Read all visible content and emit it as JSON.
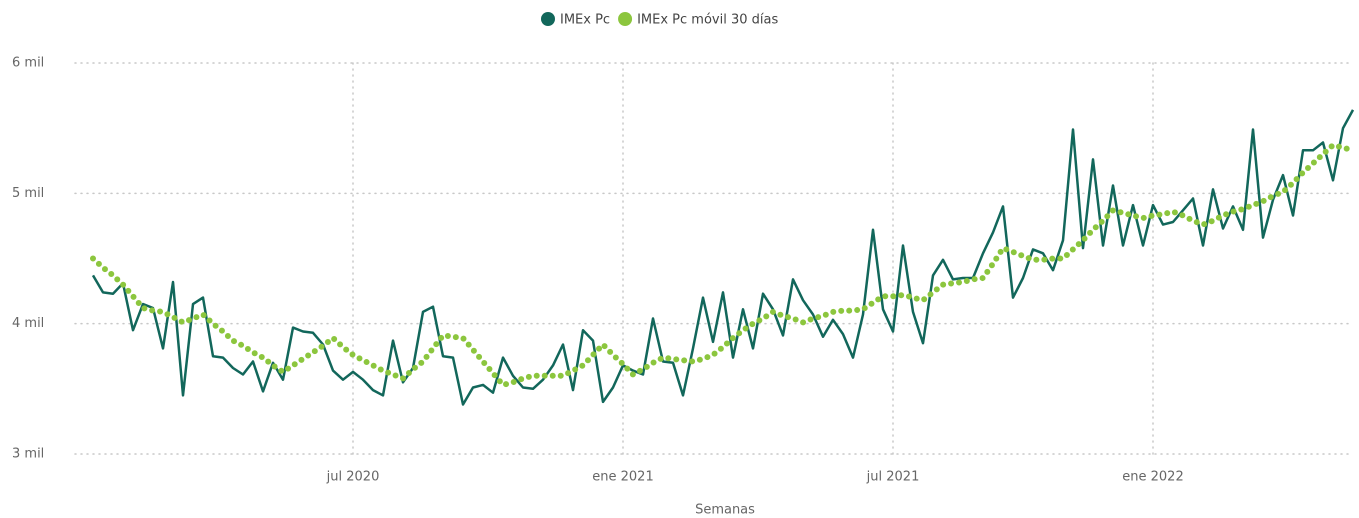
{
  "chart_data": {
    "type": "line",
    "x_label": "Semanas",
    "categories": [
      null,
      null,
      null,
      null,
      null,
      null,
      null,
      null,
      null,
      null,
      null,
      null,
      null,
      null,
      null,
      null,
      null,
      null,
      null,
      null,
      null,
      null,
      null,
      null,
      null,
      null,
      "jul 2020",
      null,
      null,
      null,
      null,
      null,
      null,
      null,
      null,
      null,
      null,
      null,
      null,
      null,
      null,
      null,
      null,
      null,
      null,
      null,
      null,
      null,
      null,
      null,
      null,
      null,
      null,
      "ene 2021",
      null,
      null,
      null,
      null,
      null,
      null,
      null,
      null,
      null,
      null,
      null,
      null,
      null,
      null,
      null,
      null,
      null,
      null,
      null,
      null,
      null,
      null,
      null,
      null,
      null,
      null,
      "jul 2021",
      null,
      null,
      null,
      null,
      null,
      null,
      null,
      null,
      null,
      null,
      null,
      null,
      null,
      null,
      null,
      null,
      null,
      null,
      null,
      null,
      null,
      null,
      null,
      null,
      null,
      "ene 2022",
      null,
      null,
      null,
      null,
      null,
      null,
      null,
      null,
      null,
      null,
      null,
      null,
      null,
      null,
      null,
      null,
      null,
      null,
      null,
      null
    ],
    "series": [
      {
        "name": "IMEx Pc",
        "color": "#12675b",
        "style": "solid",
        "values": [
          4370,
          4240,
          4230,
          4310,
          3950,
          4150,
          4120,
          3810,
          4320,
          3450,
          4150,
          4200,
          3750,
          3740,
          3660,
          3610,
          3710,
          3480,
          3700,
          3570,
          3970,
          3940,
          3930,
          3840,
          3640,
          3570,
          3630,
          3570,
          3490,
          3450,
          3870,
          3550,
          3660,
          4090,
          4130,
          3750,
          3740,
          3380,
          3510,
          3530,
          3470,
          3740,
          3600,
          3510,
          3500,
          3570,
          3680,
          3840,
          3490,
          3950,
          3870,
          3400,
          3510,
          3680,
          3640,
          3610,
          4040,
          3710,
          3700,
          3450,
          3810,
          4200,
          3860,
          4240,
          3740,
          4110,
          3810,
          4230,
          4110,
          3910,
          4340,
          4180,
          4070,
          3900,
          4030,
          3920,
          3740,
          4070,
          4720,
          4110,
          3940,
          4600,
          4090,
          3850,
          4370,
          4490,
          4340,
          4350,
          4350,
          4540,
          4700,
          4900,
          4200,
          4350,
          4570,
          4540,
          4410,
          4640,
          5490,
          4580,
          5260,
          4600,
          5060,
          4600,
          4910,
          4600,
          4910,
          4760,
          4780,
          4870,
          4960,
          4600,
          5030,
          4730,
          4900,
          4720,
          5490,
          4660,
          4950,
          5140,
          4830,
          5330,
          5330,
          5390,
          5100,
          5500,
          5640
        ]
      },
      {
        "name": "IMEx Pc móvil 30 días",
        "color": "#8cc63e",
        "style": "dotted",
        "values": [
          4500,
          4430,
          4370,
          4300,
          4210,
          4120,
          4100,
          4090,
          4050,
          4010,
          4040,
          4070,
          4000,
          3940,
          3870,
          3830,
          3780,
          3740,
          3680,
          3630,
          3680,
          3730,
          3780,
          3830,
          3890,
          3820,
          3760,
          3720,
          3680,
          3640,
          3610,
          3580,
          3650,
          3710,
          3810,
          3910,
          3900,
          3890,
          3800,
          3710,
          3620,
          3530,
          3550,
          3580,
          3600,
          3600,
          3600,
          3600,
          3640,
          3680,
          3760,
          3840,
          3760,
          3690,
          3610,
          3650,
          3700,
          3740,
          3730,
          3720,
          3710,
          3730,
          3760,
          3820,
          3890,
          3950,
          4000,
          4040,
          4090,
          4060,
          4040,
          4010,
          4040,
          4060,
          4090,
          4100,
          4100,
          4110,
          4160,
          4210,
          4210,
          4220,
          4200,
          4180,
          4240,
          4300,
          4310,
          4320,
          4340,
          4350,
          4460,
          4580,
          4550,
          4520,
          4490,
          4490,
          4500,
          4500,
          4570,
          4640,
          4720,
          4790,
          4870,
          4850,
          4830,
          4810,
          4830,
          4840,
          4860,
          4830,
          4790,
          4760,
          4790,
          4830,
          4860,
          4880,
          4910,
          4940,
          4980,
          5010,
          5080,
          5160,
          5230,
          5300,
          5370,
          5350,
          5330
        ]
      }
    ],
    "ylim": [
      3000,
      6000
    ],
    "yticks": [
      {
        "value": 3000,
        "label": "3 mil"
      },
      {
        "value": 4000,
        "label": "4 mil"
      },
      {
        "value": 5000,
        "label": "5 mil"
      },
      {
        "value": 6000,
        "label": "6 mil"
      }
    ],
    "grid": true,
    "legend": "top"
  }
}
